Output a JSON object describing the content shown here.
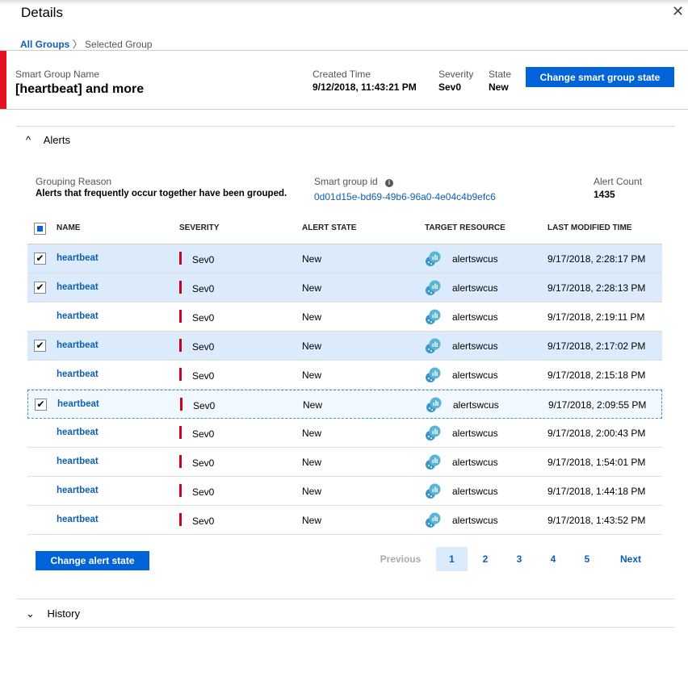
{
  "title": "Details",
  "breadcrumb": {
    "root": "All Groups",
    "current": "Selected Group"
  },
  "header": {
    "name_label": "Smart Group Name",
    "name": "[heartbeat] and more",
    "created_label": "Created Time",
    "created": "9/12/2018, 11:43:21 PM",
    "severity_label": "Severity",
    "severity": "Sev0",
    "state_label": "State",
    "state": "New",
    "change_button": "Change smart group state"
  },
  "alerts": {
    "section": "Alerts",
    "reason_label": "Grouping Reason",
    "reason": "Alerts that frequently occur together have been grouped.",
    "id_label": "Smart group id",
    "id": "0d01d15e-bd69-49b6-96a0-4e04c4b9efc6",
    "count_label": "Alert Count",
    "count": "1435",
    "columns": [
      "NAME",
      "SEVERITY",
      "ALERT STATE",
      "TARGET RESOURCE",
      "LAST MODIFIED TIME"
    ],
    "rows": [
      {
        "name": "heartbeat",
        "severity": "Sev0",
        "state": "New",
        "resource": "alertswcus",
        "time": "9/17/2018, 2:28:17 PM",
        "checked": true
      },
      {
        "name": "heartbeat",
        "severity": "Sev0",
        "state": "New",
        "resource": "alertswcus",
        "time": "9/17/2018, 2:28:13 PM",
        "checked": true
      },
      {
        "name": "heartbeat",
        "severity": "Sev0",
        "state": "New",
        "resource": "alertswcus",
        "time": "9/17/2018, 2:19:11 PM",
        "checked": false
      },
      {
        "name": "heartbeat",
        "severity": "Sev0",
        "state": "New",
        "resource": "alertswcus",
        "time": "9/17/2018, 2:17:02 PM",
        "checked": true
      },
      {
        "name": "heartbeat",
        "severity": "Sev0",
        "state": "New",
        "resource": "alertswcus",
        "time": "9/17/2018, 2:15:18 PM",
        "checked": false
      },
      {
        "name": "heartbeat",
        "severity": "Sev0",
        "state": "New",
        "resource": "alertswcus",
        "time": "9/17/2018, 2:09:55 PM",
        "checked": true,
        "focused": true
      },
      {
        "name": "heartbeat",
        "severity": "Sev0",
        "state": "New",
        "resource": "alertswcus",
        "time": "9/17/2018, 2:00:43 PM",
        "checked": false
      },
      {
        "name": "heartbeat",
        "severity": "Sev0",
        "state": "New",
        "resource": "alertswcus",
        "time": "9/17/2018, 1:54:01 PM",
        "checked": false
      },
      {
        "name": "heartbeat",
        "severity": "Sev0",
        "state": "New",
        "resource": "alertswcus",
        "time": "9/17/2018, 1:44:18 PM",
        "checked": false
      },
      {
        "name": "heartbeat",
        "severity": "Sev0",
        "state": "New",
        "resource": "alertswcus",
        "time": "9/17/2018, 1:43:52 PM",
        "checked": false
      }
    ],
    "change_button": "Change alert state",
    "pagination": {
      "previous": "Previous",
      "pages": [
        "1",
        "2",
        "3",
        "4",
        "5"
      ],
      "current": "1",
      "next": "Next"
    }
  },
  "history": {
    "section": "History"
  },
  "colors": {
    "accent": "#0064d8",
    "severity": "#e81123",
    "selected_row": "#dcebfb"
  }
}
